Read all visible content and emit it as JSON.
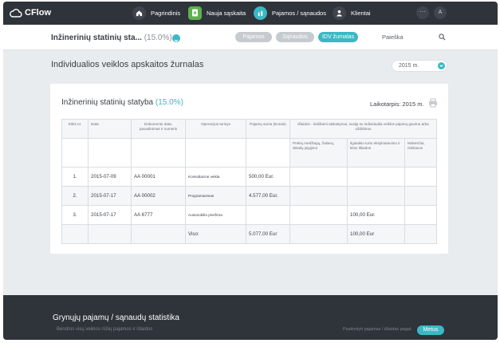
{
  "app": {
    "logo": "CFlow"
  },
  "nav": {
    "home": "Pagrindinis",
    "new_invoice": "Nauja sąskaita",
    "income_expenses": "Pajamos / sąnaudos",
    "clients": "Klientai",
    "more": "···",
    "avatar": "A"
  },
  "subheader": {
    "company": "Inžinerinių statinių sta...",
    "company_pct": "(15.0%)",
    "tabs": [
      "Pajamos",
      "Sąnaudos",
      "IDV žurnalas"
    ],
    "search_placeholder": "Paieška"
  },
  "page": {
    "title": "Individualios veiklos apskaitos žurnalas",
    "year": "2015 m."
  },
  "card": {
    "title": "Inžinerinių statinių statyba",
    "title_pct": "(15.0%)",
    "period": "Laikotarpis: 2015 m."
  },
  "table": {
    "headers": {
      "no": "Eilės nr.",
      "date": "Data",
      "doc": "Dokumento data, pavadinimas ir numeris",
      "op": "Operacijos turinys",
      "income": "Pajamų suma (Eurais)",
      "expenses": "Išlaidos - leidžiami atskaitymai, susiję su individualia veiklos pajamų gavimu arba uždirbimu",
      "sub1": "Prekių medžiagų, žaliavų, detalių įsigijimo",
      "sub2": "Ilgalaikio turto eksploatavimo ir kitos išlaidos",
      "sub3": "Mokesčiai, rinkliavos"
    },
    "rows": [
      {
        "no": "1.",
        "date": "2015-07-09",
        "doc": "AA 00001",
        "op": "Konsultacinė veikla",
        "income": "500,00 Eur.",
        "sub1": "",
        "sub2": "",
        "sub3": ""
      },
      {
        "no": "2.",
        "date": "2015-07-17",
        "doc": "AA 00002",
        "op": "Programavimas",
        "income": "4.577,00 Eur.",
        "sub1": "",
        "sub2": "",
        "sub3": ""
      },
      {
        "no": "3.",
        "date": "2015-07-17",
        "doc": "AA 6777",
        "op": "Automobilio priežiūra",
        "income": "",
        "sub1": "",
        "sub2": "100,00 Eur.",
        "sub3": ""
      }
    ],
    "total": {
      "label": "Viso:",
      "income": "5.077,00 Eur",
      "sub1": "",
      "sub2": "100,00 Eur",
      "sub3": ""
    }
  },
  "footer": {
    "title": "Grynųjų pajamų / sąnaudų statistika",
    "subtitle": "Bendros visų veiklos rūšių pajamos ir išlaidos",
    "hint": "Paskirstyti pajamas / išlaidas pagal:",
    "button": "Metus"
  },
  "colors": {
    "accent": "#3bb8c4",
    "nav_bg": "#2f333a",
    "green": "#5fb04f"
  }
}
